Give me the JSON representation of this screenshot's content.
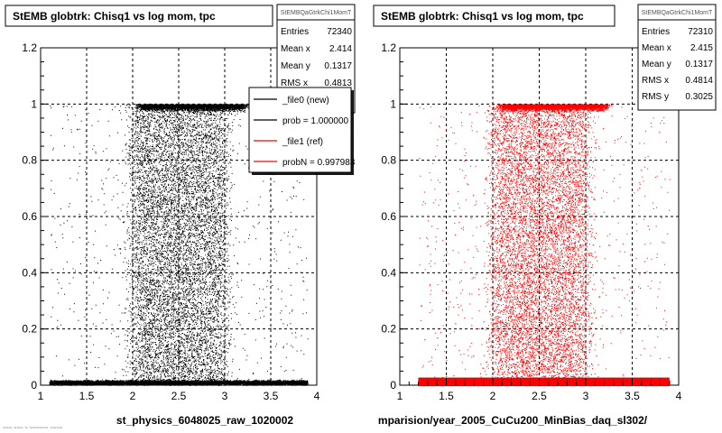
{
  "footer_text": "~~~ ~~~ ~ ~~~~~~ ~~~~",
  "chart_data": [
    {
      "type": "scatter",
      "title": "StEMB globtrk: Chisq1 vs log mom, tpc",
      "xlabel": "st_physics_6048025_raw_1020002",
      "xlim": [
        1,
        4
      ],
      "ylim": [
        0,
        1.2
      ],
      "x_ticks": [
        "1",
        "1.5",
        "2",
        "2.5",
        "3",
        "3.5",
        "4"
      ],
      "y_ticks": [
        "0",
        "0.2",
        "0.4",
        "0.6",
        "0.8",
        "1",
        "1.2"
      ],
      "grid": true,
      "marker_color": "#000000",
      "density_model": {
        "x_core": [
          2.0,
          3.0
        ],
        "x_tail": [
          1.1,
          3.9
        ],
        "band_low_y": 0.01,
        "band_high_y": 1.0
      },
      "stats_box": {
        "name": "StEMBQaGtrkChi1MomT",
        "rows": [
          {
            "label": "Entries",
            "value": "72340"
          },
          {
            "label": "Mean x",
            "value": "2.414"
          },
          {
            "label": "Mean y",
            "value": "0.1317"
          },
          {
            "label": "RMS x",
            "value": "0.4813"
          }
        ]
      },
      "legend": {
        "placement": "top-right",
        "entries": [
          {
            "text": "_file0 (new)",
            "color": "#000000"
          },
          {
            "text": "prob = 1.000000",
            "color": "#000000"
          },
          {
            "text": "_file1 (ref)",
            "color": "#ff0000"
          },
          {
            "text": "probN = 0.997983",
            "color": "#ff0000"
          }
        ]
      }
    },
    {
      "type": "scatter",
      "title": "StEMB globtrk: Chisq1 vs log mom, tpc",
      "xlabel": "mparision/year_2005_CuCu200_MinBias_daq_sl302/",
      "xlim": [
        1,
        4
      ],
      "ylim": [
        0,
        1.2
      ],
      "x_ticks": [
        "1",
        "1.5",
        "2",
        "2.5",
        "3",
        "3.5",
        "4"
      ],
      "y_ticks": [
        "0",
        "0.2",
        "0.4",
        "0.6",
        "0.8",
        "1",
        "1.2"
      ],
      "grid": true,
      "marker_color": "#ff0000",
      "density_model": {
        "x_core": [
          2.0,
          3.0
        ],
        "x_tail": [
          1.2,
          3.9
        ],
        "band_low_y": 0.01,
        "band_high_y": 1.0
      },
      "band_markers_x": [
        1.25,
        1.35,
        1.45,
        1.55,
        1.65,
        1.75,
        1.85,
        1.95,
        2.05,
        2.15,
        2.25,
        2.35,
        2.45,
        2.55,
        2.65,
        2.75,
        2.85,
        2.95,
        3.05,
        3.15,
        3.25,
        3.35,
        3.45,
        3.55,
        3.65,
        3.75,
        3.85
      ],
      "stats_box": {
        "name": "StEMBQaGtrkChi1MomT",
        "rows": [
          {
            "label": "Entries",
            "value": "72310"
          },
          {
            "label": "Mean x",
            "value": "2.415"
          },
          {
            "label": "Mean y",
            "value": "0.1317"
          },
          {
            "label": "RMS x",
            "value": "0.4814"
          },
          {
            "label": "RMS y",
            "value": "0.3025"
          }
        ]
      }
    }
  ]
}
